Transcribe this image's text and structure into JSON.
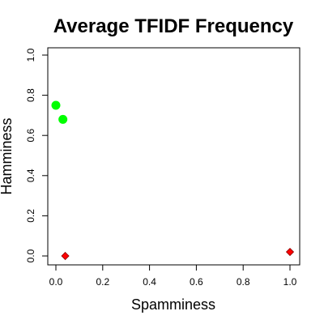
{
  "chart_data": {
    "type": "scatter",
    "title": "Average TFIDF Frequency",
    "xlabel": "Spamminess",
    "ylabel": "Hamminess",
    "xlim": [
      0,
      1
    ],
    "ylim": [
      0,
      1
    ],
    "x_ticks": [
      "0.0",
      "0.2",
      "0.4",
      "0.6",
      "0.8",
      "1.0"
    ],
    "y_ticks": [
      "0.0",
      "0.2",
      "0.4",
      "0.6",
      "0.8",
      "1.0"
    ],
    "grid": false,
    "series": [
      {
        "marker": "circle",
        "color": "#00ff00",
        "points": [
          {
            "x": 0.0,
            "y": 0.75
          },
          {
            "x": 0.03,
            "y": 0.68
          }
        ]
      },
      {
        "marker": "diamond",
        "color": "#ff0000",
        "points": [
          {
            "x": 0.04,
            "y": 0.0
          },
          {
            "x": 1.0,
            "y": 0.02
          }
        ]
      }
    ]
  }
}
